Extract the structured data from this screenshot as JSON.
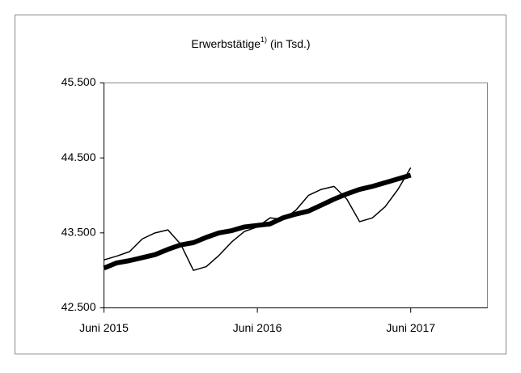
{
  "chart_data": {
    "type": "line",
    "title": "Erwerbstätige",
    "title_note": "1)",
    "title_suffix": "(in Tsd.)",
    "x": [
      0,
      1,
      2,
      3,
      4,
      5,
      6,
      7,
      8,
      9,
      10,
      11,
      12,
      13,
      14,
      15,
      16,
      17,
      18,
      19,
      20,
      21,
      22,
      23,
      24
    ],
    "xlim": [
      0,
      30
    ],
    "xticks": [
      {
        "value": 0,
        "label": "Juni 2015"
      },
      {
        "value": 12,
        "label": "Juni 2016"
      },
      {
        "value": 24,
        "label": "Juni 2017"
      }
    ],
    "ylim": [
      42500,
      45500
    ],
    "yticks": [
      {
        "value": 42500,
        "label": "42.500"
      },
      {
        "value": 43500,
        "label": "43.500"
      },
      {
        "value": 44500,
        "label": "44.500"
      },
      {
        "value": 45500,
        "label": "45.500"
      }
    ],
    "series": [
      {
        "color": "#000000",
        "width": 1.5,
        "values": [
          43140,
          43190,
          43250,
          43420,
          43500,
          43540,
          43350,
          43000,
          43050,
          43200,
          43380,
          43520,
          43580,
          43700,
          43680,
          43800,
          44000,
          44080,
          44120,
          43950,
          43650,
          43700,
          43850,
          44080,
          44370
        ]
      },
      {
        "color": "#000000",
        "width": 6,
        "values": [
          43030,
          43100,
          43130,
          43170,
          43210,
          43280,
          43340,
          43370,
          43440,
          43500,
          43530,
          43580,
          43600,
          43620,
          43700,
          43750,
          43790,
          43870,
          43950,
          44020,
          44080,
          44120,
          44170,
          44220,
          44270
        ]
      }
    ]
  }
}
